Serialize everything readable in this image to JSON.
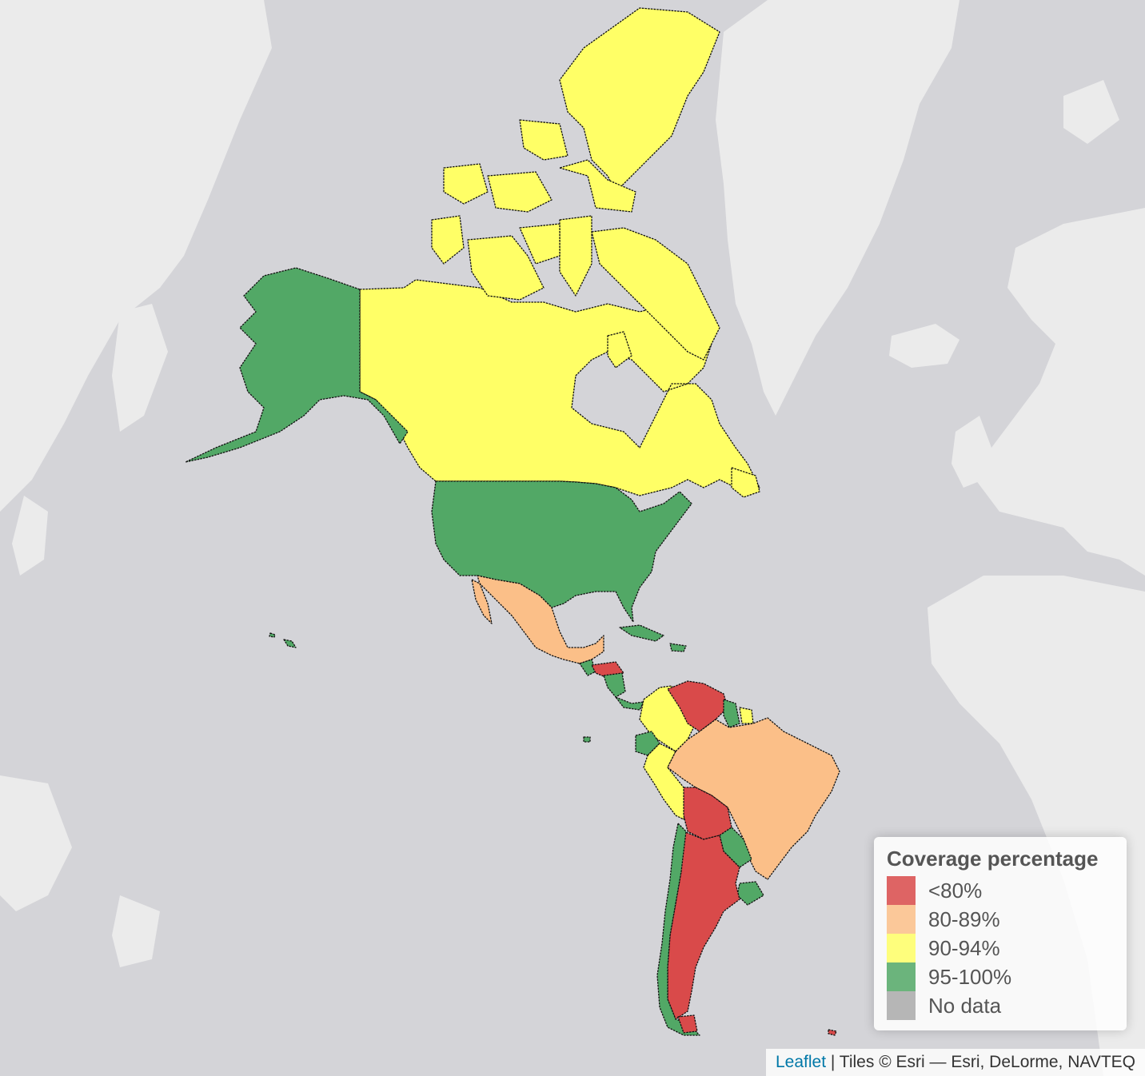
{
  "map": {
    "legend": {
      "title": "Coverage percentage",
      "items": [
        {
          "label": "<80%",
          "color": "#d94a4a"
        },
        {
          "label": "80-89%",
          "color": "#fbbf88"
        },
        {
          "label": "90-94%",
          "color": "#ffff66"
        },
        {
          "label": "95-100%",
          "color": "#52a866"
        },
        {
          "label": "No data",
          "color": "#aaaaaa"
        }
      ]
    },
    "attribution": {
      "link": "Leaflet",
      "separator": " | ",
      "text": "Tiles © Esri — Esri, DeLorme, NAVTEQ"
    },
    "regions": [
      {
        "name": "Canada",
        "category": "90-94%"
      },
      {
        "name": "United States",
        "category": "95-100%"
      },
      {
        "name": "Mexico",
        "category": "80-89%"
      },
      {
        "name": "Honduras",
        "category": "<80%"
      },
      {
        "name": "Nicaragua",
        "category": "95-100%"
      },
      {
        "name": "Cuba",
        "category": "95-100%"
      },
      {
        "name": "Colombia",
        "category": "90-94%"
      },
      {
        "name": "Venezuela",
        "category": "<80%"
      },
      {
        "name": "Guyana",
        "category": "95-100%"
      },
      {
        "name": "Ecuador",
        "category": "95-100%"
      },
      {
        "name": "Peru",
        "category": "90-94%"
      },
      {
        "name": "Brazil",
        "category": "80-89%"
      },
      {
        "name": "Bolivia",
        "category": "<80%"
      },
      {
        "name": "Paraguay",
        "category": "95-100%"
      },
      {
        "name": "Argentina",
        "category": "<80%"
      },
      {
        "name": "Chile",
        "category": "95-100%"
      },
      {
        "name": "Uruguay",
        "category": "95-100%"
      }
    ]
  }
}
